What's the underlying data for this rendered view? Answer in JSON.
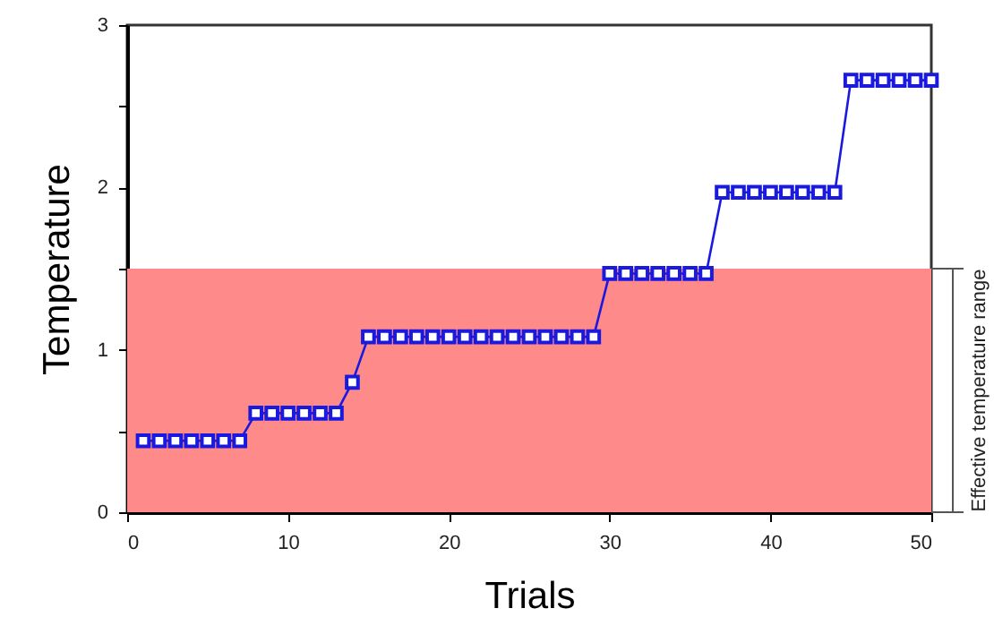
{
  "chart_data": {
    "type": "line",
    "xlabel": "Trials",
    "ylabel": "Temperature",
    "x": [
      1,
      2,
      3,
      4,
      5,
      6,
      7,
      8,
      9,
      10,
      11,
      12,
      13,
      14,
      15,
      16,
      17,
      18,
      19,
      20,
      21,
      22,
      23,
      24,
      25,
      26,
      27,
      28,
      29,
      30,
      31,
      32,
      33,
      34,
      35,
      36,
      37,
      38,
      39,
      40,
      41,
      42,
      43,
      44,
      45,
      46,
      47,
      48,
      49,
      50
    ],
    "series": [
      {
        "color": "#1a1adf",
        "values": [
          0.44,
          0.44,
          0.44,
          0.44,
          0.44,
          0.44,
          0.44,
          0.61,
          0.61,
          0.61,
          0.61,
          0.61,
          0.61,
          0.8,
          1.08,
          1.08,
          1.08,
          1.08,
          1.08,
          1.08,
          1.08,
          1.08,
          1.08,
          1.08,
          1.08,
          1.08,
          1.08,
          1.08,
          1.08,
          1.47,
          1.47,
          1.47,
          1.47,
          1.47,
          1.47,
          1.47,
          1.97,
          1.97,
          1.97,
          1.97,
          1.97,
          1.97,
          1.97,
          1.97,
          2.66,
          2.66,
          2.66,
          2.66,
          2.66,
          2.66
        ]
      }
    ],
    "xlim": [
      0,
      50
    ],
    "xticks": [
      0,
      10,
      20,
      30,
      40,
      50
    ],
    "ylim": [
      0,
      3
    ],
    "yticks": [
      0,
      {
        "value": 0.5,
        "label": null
      },
      1,
      {
        "value": 1.5,
        "label": null
      },
      2,
      {
        "value": 2.5,
        "label": null
      },
      3
    ],
    "bands": [
      {
        "axis": "y",
        "from": 0,
        "to": 1.5,
        "label": "Effective temperature range",
        "color": "#ff8a8a"
      }
    ],
    "marker": "square",
    "line_style": "solid",
    "grid": false
  }
}
